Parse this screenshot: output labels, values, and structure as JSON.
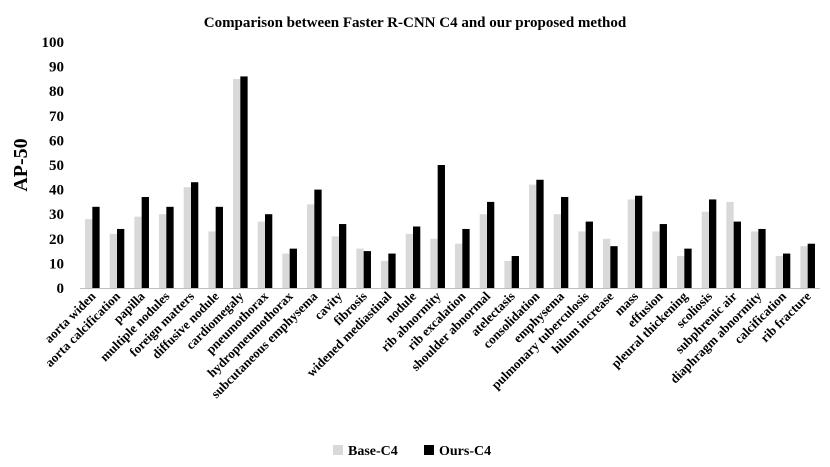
{
  "chart_data": {
    "type": "bar",
    "title": "Comparison between Faster R-CNN C4 and our proposed method",
    "xlabel": "",
    "ylabel": "AP-50",
    "ylim": [
      0,
      100
    ],
    "yticks": [
      0,
      10,
      20,
      30,
      40,
      50,
      60,
      70,
      80,
      90,
      100
    ],
    "grid": false,
    "legend_position": "bottom",
    "categories": [
      "aorta widen",
      "aorta calcification",
      "papilla",
      "multiple nodules",
      "foreign matters",
      "diffusive nodule",
      "cardiomegaly",
      "pneumothorax",
      "hydropneumothorax",
      "subcutaneous emphysema",
      "cavity",
      "fibrosis",
      "widened mediastinal",
      "nodule",
      "rib abnormity",
      "rib excalation",
      "shoulder abnormal",
      "atelectasis",
      "consolidation",
      "emphysema",
      "pulmonary tuberculosis",
      "hilum increase",
      "mass",
      "effusion",
      "pleural thickening",
      "scoliosis",
      "subphrenic air",
      "diaphragm abnormity",
      "calcification",
      "rib fracture"
    ],
    "series": [
      {
        "name": "Base-C4",
        "color": "#d9d9d9",
        "values": [
          28,
          22,
          29,
          30,
          41,
          23,
          85,
          27,
          14,
          34,
          21,
          16,
          11,
          22,
          20,
          18,
          30,
          11,
          42,
          30,
          23,
          20,
          36,
          23,
          13,
          31,
          35,
          23,
          13,
          17
        ]
      },
      {
        "name": "Ours-C4",
        "color": "#000000",
        "values": [
          33,
          24,
          37,
          33,
          43,
          33,
          86,
          30,
          16,
          40,
          26,
          15,
          14,
          25,
          50,
          24,
          35,
          13,
          44,
          37,
          27,
          17,
          37.5,
          26,
          16,
          36,
          27,
          24,
          14,
          18
        ]
      }
    ]
  }
}
